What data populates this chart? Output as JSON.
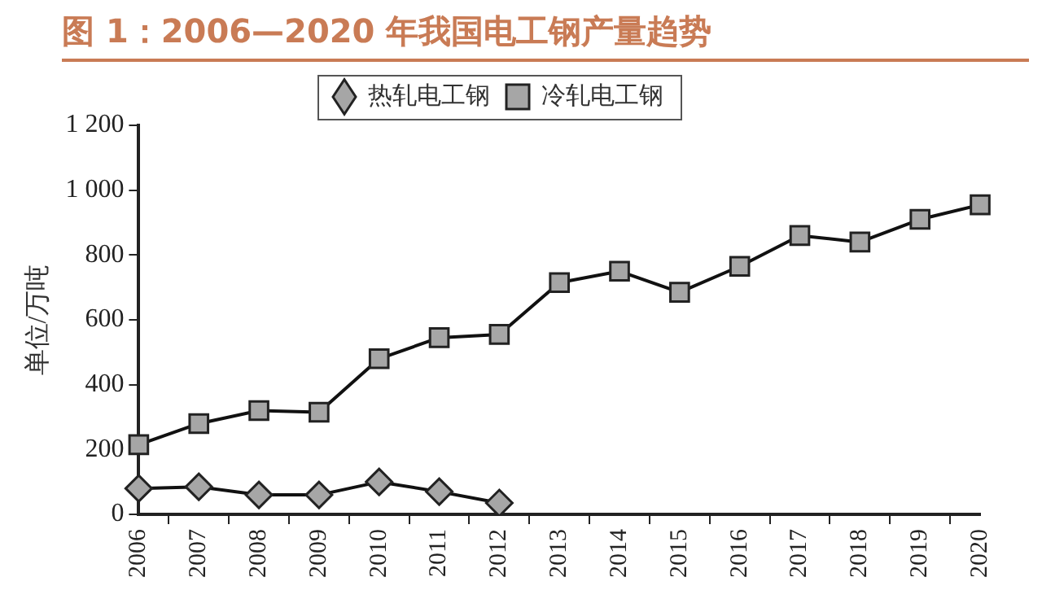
{
  "chart_data": {
    "type": "line",
    "title": "图 1：2006—2020 年我国电工钢产量趋势",
    "ylabel": "单位/万吨",
    "categories": [
      "2006",
      "2007",
      "2008",
      "2009",
      "2010",
      "2011",
      "2012",
      "2013",
      "2014",
      "2015",
      "2016",
      "2017",
      "2018",
      "2019",
      "2020"
    ],
    "series": [
      {
        "name": "热轧电工钢",
        "color": "#a6a6a6",
        "marker": "diamond",
        "values": [
          80,
          85,
          60,
          60,
          100,
          70,
          35,
          null,
          null,
          null,
          null,
          null,
          null,
          null,
          null
        ]
      },
      {
        "name": "冷轧电工钢",
        "color": "#a6a6a6",
        "marker": "square",
        "values": [
          215,
          280,
          320,
          315,
          480,
          545,
          555,
          715,
          750,
          685,
          765,
          860,
          840,
          910,
          955
        ]
      }
    ],
    "ylim": [
      0,
      1200
    ],
    "yticks": [
      0,
      200,
      400,
      600,
      800,
      {
        "value": 1000,
        "label": "1 000"
      },
      {
        "value": 1200,
        "label": "1 200"
      }
    ],
    "grid": false,
    "legend": "top",
    "line_style": "solid"
  }
}
